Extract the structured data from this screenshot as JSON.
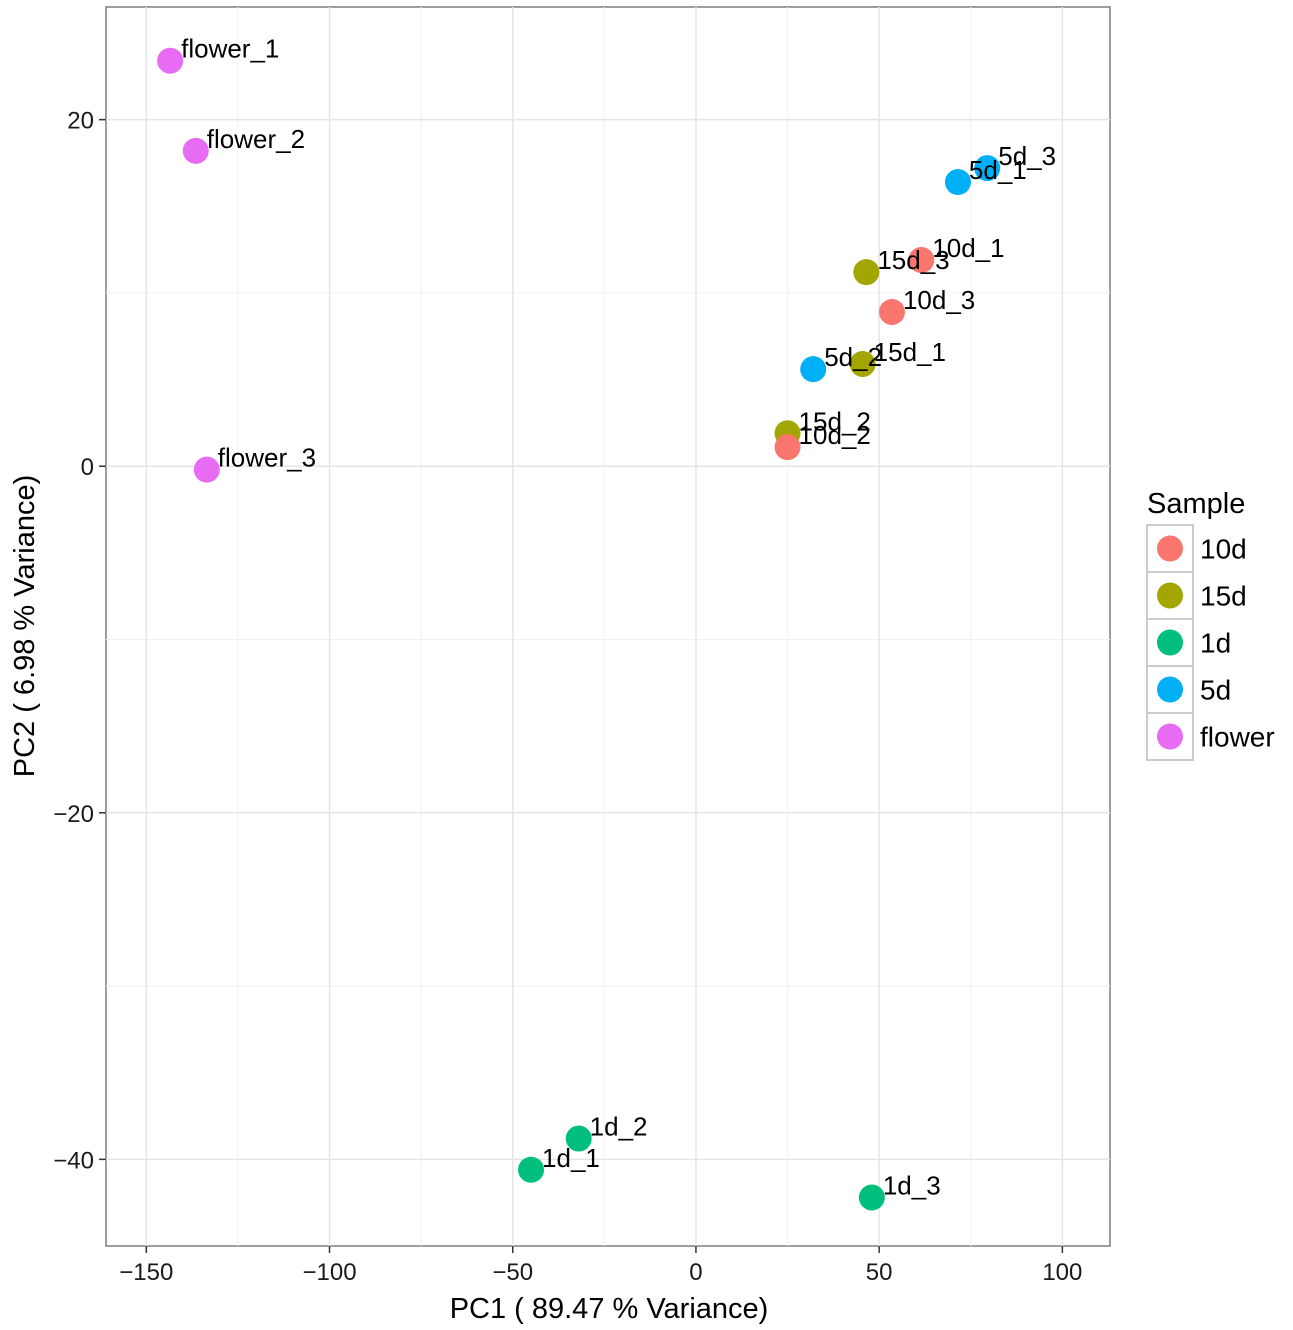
{
  "chart_data": {
    "type": "scatter",
    "title": "",
    "xlabel": "PC1 ( 89.47  % Variance)",
    "ylabel": "PC2 ( 6.98  % Variance)",
    "xlim": [
      -161,
      113
    ],
    "ylim": [
      -45,
      26.5
    ],
    "x_ticks": [
      -150,
      -100,
      -50,
      0,
      50,
      100
    ],
    "x_tick_labels": [
      "-150",
      "-100",
      "-50",
      "0",
      "50",
      "100"
    ],
    "y_ticks": [
      -40,
      -20,
      0,
      20
    ],
    "y_tick_labels": [
      "-40",
      "-20",
      "0",
      "20"
    ],
    "grid": true,
    "legend": {
      "title": "Sample",
      "position": "right",
      "entries": [
        {
          "name": "10d",
          "color": "#F8766D"
        },
        {
          "name": "15d",
          "color": "#A3A500"
        },
        {
          "name": "1d",
          "color": "#00BF7D"
        },
        {
          "name": "5d",
          "color": "#00B0F6"
        },
        {
          "name": "flower",
          "color": "#E76BF3"
        }
      ]
    },
    "points": [
      {
        "label": "flower_1",
        "group": "flower",
        "x": -143.5,
        "y": 23.4
      },
      {
        "label": "flower_2",
        "group": "flower",
        "x": -136.5,
        "y": 18.2
      },
      {
        "label": "flower_3",
        "group": "flower",
        "x": -133.5,
        "y": -0.2
      },
      {
        "label": "5d_3",
        "group": "5d",
        "x": 79.5,
        "y": 17.2
      },
      {
        "label": "5d_1",
        "group": "5d",
        "x": 71.5,
        "y": 16.4
      },
      {
        "label": "10d_1",
        "group": "10d",
        "x": 61.5,
        "y": 11.9
      },
      {
        "label": "15d_3",
        "group": "15d",
        "x": 46.5,
        "y": 11.2
      },
      {
        "label": "10d_3",
        "group": "10d",
        "x": 53.5,
        "y": 8.9
      },
      {
        "label": "15d_1",
        "group": "15d",
        "x": 45.5,
        "y": 5.9
      },
      {
        "label": "5d_2",
        "group": "5d",
        "x": 32.0,
        "y": 5.6
      },
      {
        "label": "15d_2",
        "group": "15d",
        "x": 25.0,
        "y": 1.9
      },
      {
        "label": "10d_2",
        "group": "10d",
        "x": 25.0,
        "y": 1.1
      },
      {
        "label": "1d_2",
        "group": "1d",
        "x": -32.0,
        "y": -38.8
      },
      {
        "label": "1d_1",
        "group": "1d",
        "x": -45.0,
        "y": -40.6
      },
      {
        "label": "1d_3",
        "group": "1d",
        "x": 48.0,
        "y": -42.2
      }
    ]
  }
}
